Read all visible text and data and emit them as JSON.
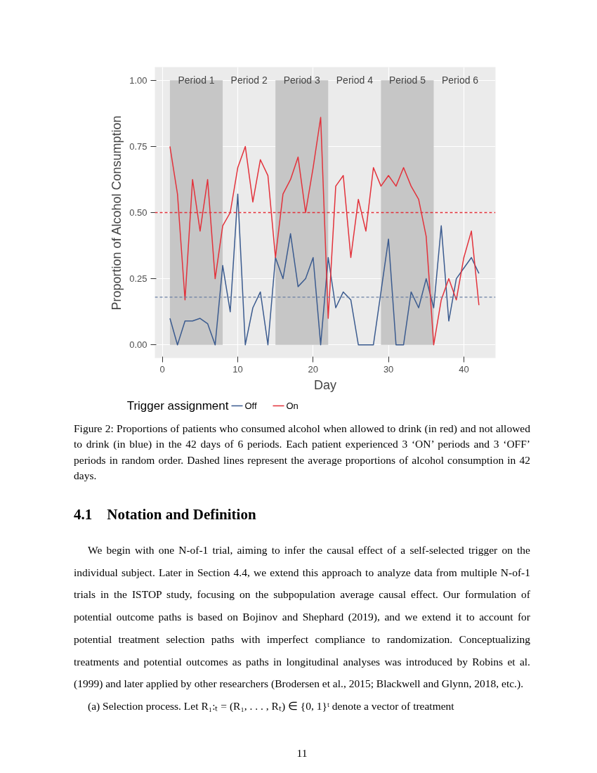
{
  "chart_data": {
    "type": "line",
    "xlabel": "Day",
    "ylabel": "Proportion of Alcohol Consumption",
    "legend_title": "Trigger assignment",
    "legend": "bottom",
    "grid": true,
    "marker": "none",
    "line_style": "solid",
    "xlim": [
      -1,
      44.2
    ],
    "ylim": [
      -0.05,
      1.05
    ],
    "xticks": [
      0,
      10,
      20,
      30,
      40
    ],
    "yticks": [
      {
        "value": 0,
        "label": "0.00"
      },
      {
        "value": 0.25,
        "label": "0.25"
      },
      {
        "value": 0.5,
        "label": "0.50"
      },
      {
        "value": 0.75,
        "label": "0.75"
      },
      {
        "value": 1,
        "label": "1.00"
      }
    ],
    "x": [
      1,
      2,
      3,
      4,
      5,
      6,
      7,
      8,
      9,
      10,
      11,
      12,
      13,
      14,
      15,
      16,
      17,
      18,
      19,
      20,
      21,
      22,
      23,
      24,
      25,
      26,
      27,
      28,
      29,
      30,
      31,
      32,
      33,
      34,
      35,
      36,
      37,
      38,
      39,
      40,
      41,
      42
    ],
    "series": [
      {
        "name": "Off",
        "color": "#3b5b8f",
        "values": [
          0.1,
          0,
          0.09,
          0.09,
          0.1,
          0.08,
          0,
          0.3,
          0.125,
          0.57,
          0,
          0.14,
          0.2,
          0,
          0.33,
          0.25,
          0.42,
          0.22,
          0.25,
          0.33,
          0,
          0.33,
          0.14,
          0.2,
          0.17,
          0,
          0,
          0,
          0.2,
          0.4,
          0,
          0,
          0.2,
          0.14,
          0.25,
          0.14,
          0.45,
          0.09,
          0.25,
          0.29,
          0.33,
          0.27
        ]
      },
      {
        "name": "On",
        "color": "#e3323b",
        "values": [
          0.75,
          0.57,
          0.17,
          0.625,
          0.43,
          0.625,
          0.25,
          0.45,
          0.5,
          0.67,
          0.75,
          0.54,
          0.7,
          0.64,
          0.33,
          0.57,
          0.625,
          0.71,
          0.5,
          0.67,
          0.86,
          0.1,
          0.6,
          0.64,
          0.33,
          0.55,
          0.43,
          0.67,
          0.6,
          0.64,
          0.6,
          0.67,
          0.6,
          0.55,
          0.41,
          0,
          0.17,
          0.25,
          0.17,
          0.33,
          0.43,
          0.15
        ]
      }
    ],
    "ref_lines": [
      {
        "axis": "y",
        "value": 0.5,
        "color": "#e3323b",
        "line_style": "dashed"
      },
      {
        "axis": "y",
        "value": 0.18,
        "color": "#6a7fa3",
        "line_style": "dashed"
      }
    ],
    "bands": [
      {
        "axis": "x",
        "from": 1,
        "to": 8,
        "label": "Period 1",
        "color": "#c6c6c6"
      },
      {
        "axis": "x",
        "from": 15,
        "to": 22,
        "label": "Period 3",
        "color": "#c6c6c6"
      },
      {
        "axis": "x",
        "from": 29,
        "to": 36,
        "label": "Period 5",
        "color": "#c6c6c6"
      }
    ],
    "annotations": [
      "Period 2",
      "Period 4",
      "Period 6",
      "Figure 2: Proportions of patients who consumed alcohol when allowed to drink (in red) and not allowed to drink (in blue) in the 42 days of 6 periods. Each patient experienced 3 ‘ON’ periods and 3 ‘OFF’ periods in random order. Dashed lines represent the average proportions of alcohol consumption in 42 days.",
      "4.1    Notation and Definition",
      "We begin with one N-of-1 trial, aiming to infer the causal effect of a self-selected trigger on the individual subject. Later in Section 4.4, we extend this approach to analyze data from multiple N-of-1 trials in the ISTOP study, focusing on the subpopulation average causal effect. Our formulation of potential outcome paths is based on Bojinov and Shephard (2019), and we extend it to account for potential treatment selection paths with imperfect compliance to randomization. Conceptualizing treatments and potential outcomes as paths in longitudinal analyses was introduced by Robins et al. (1999) and later applied by other researchers (Brodersen et al., 2015; Blackwell and Glynn, 2018, etc.).",
      "(a) Selection process.    Let R₁:ₜ = (R₁, . . . , Rₜ) ∈ {0, 1}ᵗ denote a vector of treatment",
      "11"
    ]
  }
}
